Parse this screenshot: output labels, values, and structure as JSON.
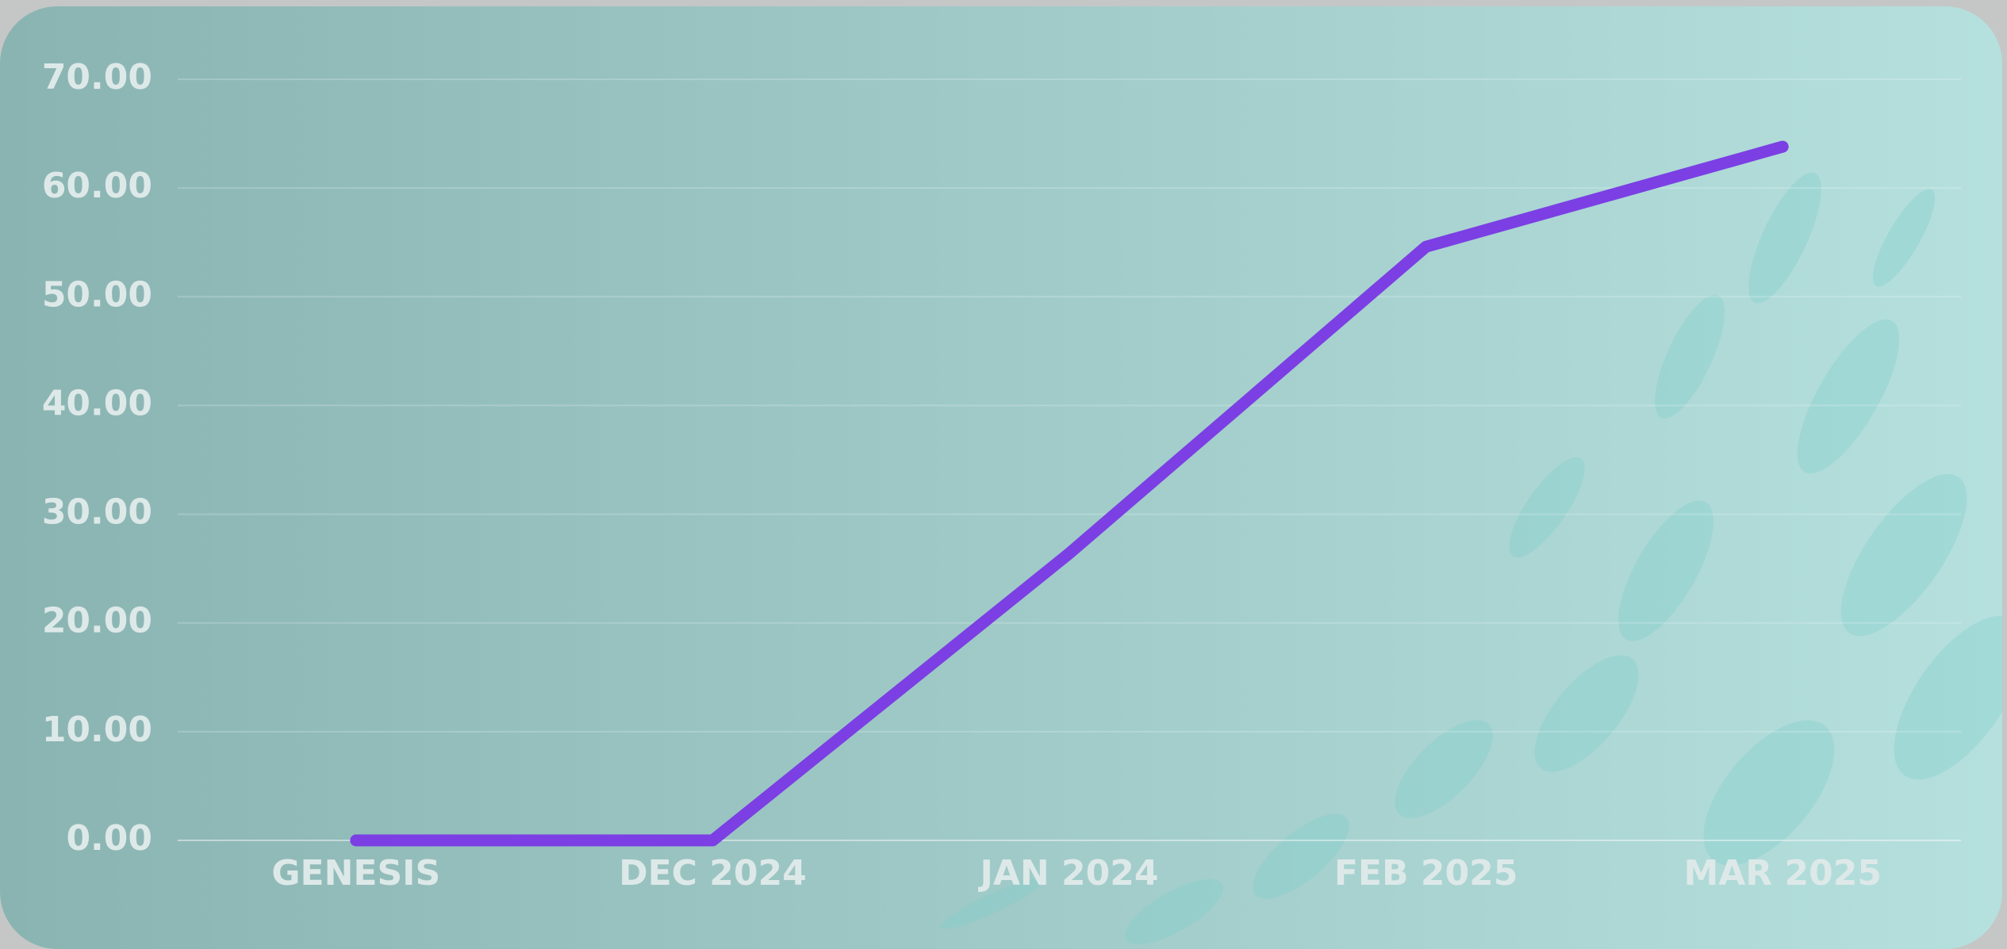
{
  "chart_data": {
    "type": "line",
    "categories": [
      "GENESIS",
      "DEC 2024",
      "JAN 2024",
      "FEB 2025",
      "MAR 2025"
    ],
    "values": [
      0,
      0,
      26.4,
      54.6,
      63.8
    ],
    "color": "#7b3fe4",
    "ylim": [
      0,
      70
    ],
    "yticks": [
      {
        "value": 0,
        "label": "0.00"
      },
      {
        "value": 10,
        "label": "10.00"
      },
      {
        "value": 20,
        "label": "20.00"
      },
      {
        "value": 30,
        "label": "30.00"
      },
      {
        "value": 40,
        "label": "40.00"
      },
      {
        "value": 50,
        "label": "50.00"
      },
      {
        "value": 60,
        "label": "60.00"
      },
      {
        "value": 70,
        "label": "70.00"
      }
    ],
    "grid": true
  }
}
